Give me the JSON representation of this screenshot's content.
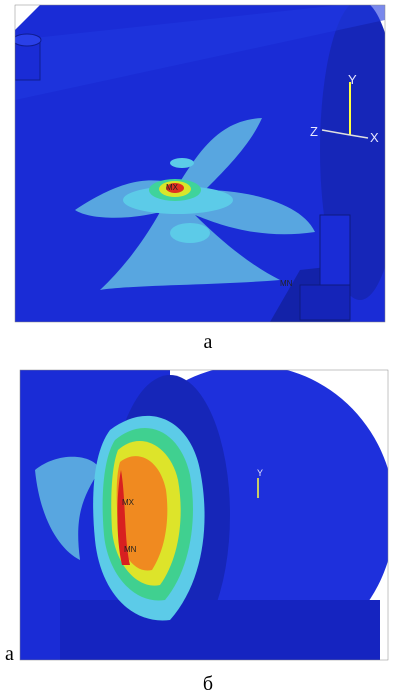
{
  "figure": {
    "panels": [
      {
        "caption": "а",
        "labels": {
          "max": "MX",
          "min": "MN"
        },
        "axes": {
          "y": "Y",
          "z": "Z",
          "x": "X"
        }
      },
      {
        "caption": "б",
        "side_label": "а",
        "labels": {
          "max": "MX",
          "min": "MN"
        },
        "axes": {
          "y": "Y"
        }
      }
    ]
  }
}
